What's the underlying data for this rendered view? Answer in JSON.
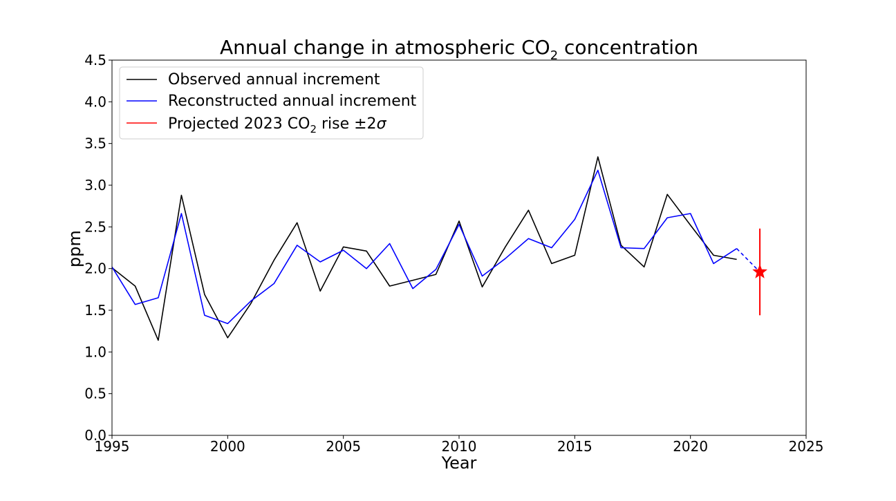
{
  "chart_data": {
    "type": "line",
    "title": "Annual change in atmospheric CO",
    "title_subscript": "2",
    "title_suffix": " concentration",
    "xlabel": "Year",
    "ylabel": "ppm",
    "xlim": [
      1995,
      2025
    ],
    "ylim": [
      0,
      4.5
    ],
    "xticks": [
      "1995",
      "2000",
      "2005",
      "2010",
      "2015",
      "2020",
      "2025"
    ],
    "yticks": [
      "0.0",
      "0.5",
      "1.0",
      "1.5",
      "2.0",
      "2.5",
      "3.0",
      "3.5",
      "4.0",
      "4.5"
    ],
    "grid": false,
    "legend_position": "top-left",
    "series": [
      {
        "name": "Observed annual increment",
        "color": "#000000",
        "x": [
          1995,
          1996,
          1997,
          1998,
          1999,
          2000,
          2001,
          2002,
          2003,
          2004,
          2005,
          2006,
          2007,
          2008,
          2009,
          2010,
          2011,
          2012,
          2013,
          2014,
          2015,
          2016,
          2017,
          2018,
          2019,
          2020,
          2021,
          2022
        ],
        "y": [
          2.01,
          1.79,
          1.14,
          2.88,
          1.69,
          1.17,
          1.58,
          2.1,
          2.55,
          1.73,
          2.26,
          2.21,
          1.79,
          1.86,
          1.93,
          2.57,
          1.78,
          2.26,
          2.7,
          2.06,
          2.16,
          3.34,
          2.28,
          2.02,
          2.89,
          2.52,
          2.16,
          2.11
        ]
      },
      {
        "name": "Reconstructed annual increment",
        "color": "#0000ff",
        "x": [
          1995,
          1996,
          1997,
          1998,
          1999,
          2000,
          2001,
          2002,
          2003,
          2004,
          2005,
          2006,
          2007,
          2008,
          2009,
          2010,
          2011,
          2012,
          2013,
          2014,
          2015,
          2016,
          2017,
          2018,
          2019,
          2020,
          2021,
          2022
        ],
        "y": [
          2.02,
          1.57,
          1.65,
          2.66,
          1.44,
          1.34,
          1.61,
          1.82,
          2.28,
          2.08,
          2.22,
          2.0,
          2.3,
          1.76,
          1.99,
          2.53,
          1.91,
          2.12,
          2.36,
          2.25,
          2.59,
          3.18,
          2.25,
          2.24,
          2.61,
          2.66,
          2.06,
          2.24
        ]
      },
      {
        "name": "Projected 2023 CO",
        "name_subscript": "2",
        "name_suffix": " rise ±2",
        "name_symbol": "σ",
        "color": "#ff0000",
        "x": [
          2023
        ],
        "y": [
          1.96
        ],
        "error": [
          0.52
        ]
      }
    ],
    "projection_link": {
      "x": [
        2022,
        2023
      ],
      "y": [
        2.24,
        1.96
      ],
      "color": "#0000ff",
      "style": "dashed"
    }
  }
}
